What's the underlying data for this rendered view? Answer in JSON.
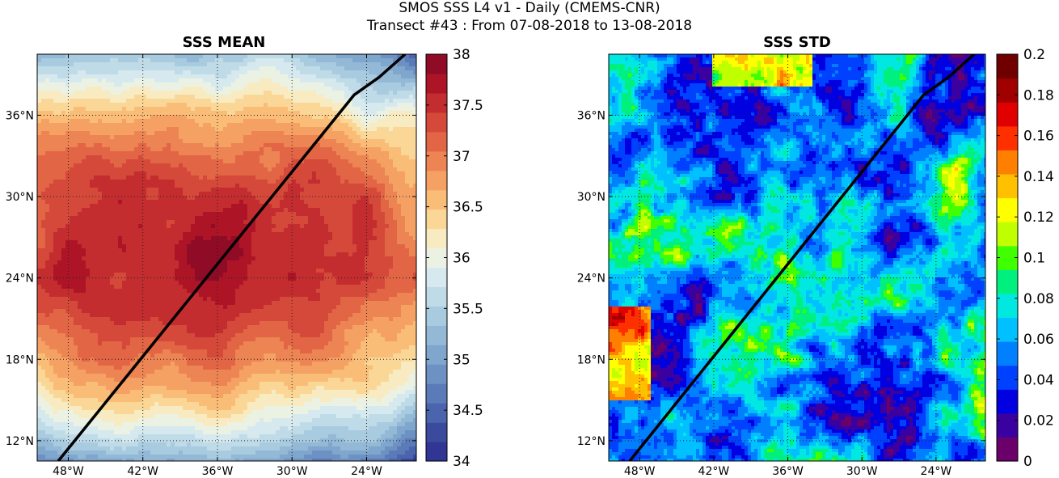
{
  "figure": {
    "title_line1": "SMOS SSS L4 v1 - Daily (CMEMS-CNR)",
    "title_line2": "Transect #43 : From 07-08-2018 to 13-08-2018"
  },
  "panels": [
    {
      "id": "mean",
      "title": "SSS MEAN",
      "lon_ticks": [
        -48,
        -42,
        -36,
        -30,
        -24
      ],
      "lon_tick_labels": [
        "48°W",
        "42°W",
        "36°W",
        "30°W",
        "24°W"
      ],
      "lat_ticks": [
        12,
        18,
        24,
        30,
        36
      ],
      "lat_tick_labels": [
        "12°N",
        "18°N",
        "24°N",
        "30°N",
        "36°N"
      ],
      "colorbar": {
        "min": 34,
        "max": 38,
        "tick_values": [
          34,
          34.5,
          35,
          35.5,
          36,
          36.5,
          37,
          37.5,
          38
        ],
        "tick_labels": [
          "34",
          "34.5",
          "35",
          "35.5",
          "36",
          "36.5",
          "37",
          "37.5",
          "38"
        ],
        "colors": [
          "#313695",
          "#3a4a9d",
          "#4a64ad",
          "#5b7bb8",
          "#6c91c2",
          "#7fa6cc",
          "#93b9d6",
          "#a9cbe0",
          "#c0dbe8",
          "#d6e9ee",
          "#ebf2e4",
          "#f8ebc1",
          "#fbd797",
          "#f9bd78",
          "#f4a163",
          "#ec8453",
          "#e26545",
          "#d4493a",
          "#c32d2f",
          "#ad1527",
          "#8f0b26"
        ]
      }
    },
    {
      "id": "std",
      "title": "SSS STD",
      "lon_ticks": [
        -48,
        -42,
        -36,
        -30,
        -24
      ],
      "lon_tick_labels": [
        "48°W",
        "42°W",
        "36°W",
        "30°W",
        "24°W"
      ],
      "lat_ticks": [
        12,
        18,
        24,
        30,
        36
      ],
      "lat_tick_labels": [
        "12°N",
        "18°N",
        "24°N",
        "30°N",
        "36°N"
      ],
      "colorbar": {
        "min": 0,
        "max": 0.2,
        "tick_values": [
          0,
          0.02,
          0.04,
          0.06,
          0.08,
          0.1,
          0.12,
          0.14,
          0.16,
          0.18,
          0.2
        ],
        "tick_labels": [
          "0",
          "0.02",
          "0.04",
          "0.06",
          "0.08",
          "0.1",
          "0.12",
          "0.14",
          "0.16",
          "0.18",
          "0.2"
        ],
        "colors": [
          "#6b006b",
          "#3a00a0",
          "#0000e0",
          "#0040ff",
          "#0080ff",
          "#00c0ff",
          "#00e8e0",
          "#00f080",
          "#40ff00",
          "#c0ff00",
          "#ffff00",
          "#ffc000",
          "#ff8000",
          "#ff3000",
          "#e00000",
          "#a00000",
          "#700000"
        ]
      }
    }
  ],
  "map_extent": {
    "lon_min": -50.5,
    "lon_max": -20.0,
    "lat_min": 10.5,
    "lat_max": 40.5
  },
  "transect": {
    "lons": [
      -48.8,
      -25.0,
      -23.0,
      -20.9
    ],
    "lats": [
      10.5,
      37.5,
      38.8,
      40.5
    ]
  }
}
